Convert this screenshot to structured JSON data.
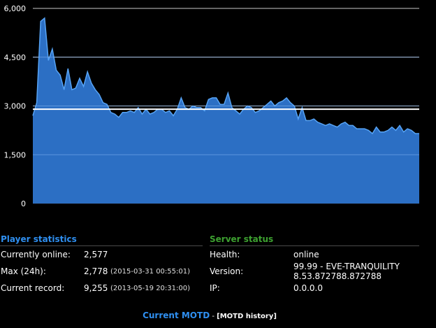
{
  "chart_data": {
    "type": "area",
    "ylim": [
      0,
      6000
    ],
    "yticks": [
      "6,000",
      "4,500",
      "3,000",
      "1,500",
      "0"
    ],
    "ytick_values": [
      6000,
      4500,
      3000,
      1500,
      0
    ],
    "reference_line": 2900,
    "values": [
      2700,
      3100,
      5600,
      5700,
      4400,
      4750,
      4100,
      3950,
      3500,
      4150,
      3500,
      3550,
      3850,
      3600,
      4050,
      3700,
      3500,
      3350,
      3100,
      3050,
      2800,
      2750,
      2650,
      2800,
      2800,
      2850,
      2800,
      2950,
      2750,
      2900,
      2750,
      2800,
      2900,
      2900,
      2800,
      2850,
      2700,
      2900,
      3250,
      2950,
      2900,
      3000,
      2950,
      2950,
      2850,
      3200,
      3250,
      3250,
      3050,
      3050,
      3400,
      2950,
      2850,
      2750,
      2900,
      3000,
      2950,
      2800,
      2850,
      2950,
      3050,
      3150,
      3000,
      3100,
      3150,
      3250,
      3100,
      3000,
      2600,
      2950,
      2550,
      2550,
      2600,
      2500,
      2450,
      2400,
      2450,
      2400,
      2350,
      2450,
      2500,
      2400,
      2400,
      2300,
      2300,
      2300,
      2250,
      2150,
      2350,
      2200,
      2200,
      2250,
      2350,
      2250,
      2400,
      2200,
      2300,
      2250,
      2150,
      2150
    ],
    "colors": {
      "area": "#2c6fc4",
      "line": "#56a3f5",
      "grid": "#c8c8c8",
      "reference": "#ffffff"
    }
  },
  "player_stats": {
    "title": "Player statistics",
    "title_color": "#2f8ff0",
    "rows": [
      {
        "label": "Currently online:",
        "value": "2,577",
        "sub": ""
      },
      {
        "label": "Max (24h):",
        "value": "2,778",
        "sub": "(2015-03-31 00:55:01)"
      },
      {
        "label": "Current record:",
        "value": "9,255",
        "sub": "(2013-05-19 20:31:00)"
      }
    ]
  },
  "server_status": {
    "title": "Server status",
    "title_color": "#3da130",
    "rows": [
      {
        "label": "Health:",
        "value": "online"
      },
      {
        "label": "Version:",
        "value": "99.99 - EVE-TRANQUILITY",
        "value2": "8.53.872788.872788"
      },
      {
        "label": "IP:",
        "value": "0.0.0.0"
      }
    ]
  },
  "motd": {
    "title": "Current MOTD",
    "separator": " - ",
    "history_link": "[MOTD history]"
  }
}
